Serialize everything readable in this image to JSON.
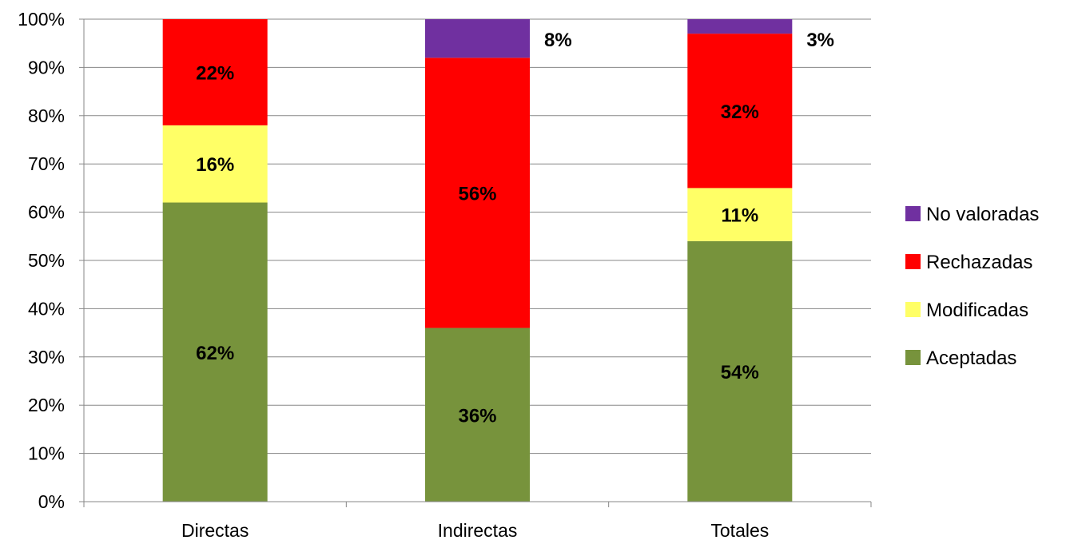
{
  "chart_data": {
    "type": "bar",
    "stacked": true,
    "percent_stacked": true,
    "categories": [
      "Directas",
      "Indirectas",
      "Totales"
    ],
    "series": [
      {
        "name": "Aceptadas",
        "color": "#77933c",
        "values": [
          62,
          36,
          54
        ],
        "labels": [
          "62%",
          "36%",
          "54%"
        ]
      },
      {
        "name": "Modificadas",
        "color": "#ffff66",
        "values": [
          16,
          0,
          11
        ],
        "labels": [
          "16%",
          "",
          "11%"
        ]
      },
      {
        "name": "Rechazadas",
        "color": "#ff0000",
        "values": [
          22,
          56,
          32
        ],
        "labels": [
          "22%",
          "56%",
          "32%"
        ]
      },
      {
        "name": "No valoradas",
        "color": "#7030a0",
        "values": [
          0,
          8,
          3
        ],
        "labels": [
          "",
          "8%",
          "3%"
        ]
      }
    ],
    "yticks": [
      "0%",
      "10%",
      "20%",
      "30%",
      "40%",
      "50%",
      "60%",
      "70%",
      "80%",
      "90%",
      "100%"
    ],
    "ylim": [
      0,
      100
    ],
    "grid": true,
    "legend_position": "right",
    "title": "",
    "xlabel": "",
    "ylabel": ""
  }
}
